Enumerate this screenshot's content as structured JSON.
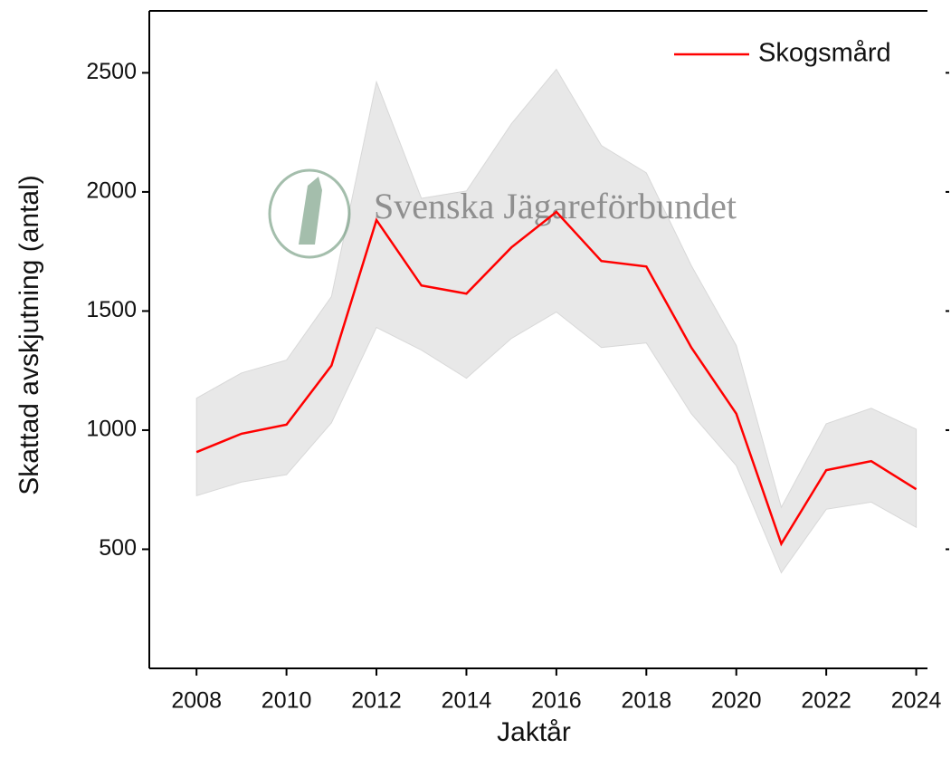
{
  "chart_data": {
    "type": "line",
    "ylabel": "Skattad avskjutning (antal)",
    "xlabel": "Jaktår",
    "watermark": "Svenska Jägareförbundet",
    "x": [
      2008,
      2009,
      2010,
      2011,
      2012,
      2013,
      2014,
      2015,
      2016,
      2017,
      2018,
      2019,
      2020,
      2021,
      2022,
      2023,
      2024
    ],
    "series": [
      {
        "name": "Skogsmård",
        "color": "#ff0000",
        "values": [
          908,
          985,
          1023,
          1271,
          1882,
          1607,
          1573,
          1767,
          1916,
          1710,
          1687,
          1347,
          1069,
          523,
          832,
          870,
          752
        ],
        "upper": [
          1134,
          1240,
          1294,
          1561,
          2462,
          1973,
          2004,
          2286,
          2515,
          2195,
          2080,
          1691,
          1355,
          676,
          1027,
          1092,
          1004
        ],
        "lower": [
          725,
          782,
          813,
          1031,
          1431,
          1336,
          1218,
          1385,
          1496,
          1347,
          1366,
          1069,
          851,
          401,
          668,
          698,
          592
        ],
        "band_color": "#e8e8e8"
      }
    ],
    "xlim": [
      2006.95,
      2024.25
    ],
    "xticks": [
      2008,
      2010,
      2012,
      2014,
      2016,
      2018,
      2020,
      2022,
      2024
    ],
    "ylim": [
      0,
      2760
    ],
    "yticks": [
      500,
      1000,
      1500,
      2000,
      2500
    ],
    "legend": "top-right"
  }
}
